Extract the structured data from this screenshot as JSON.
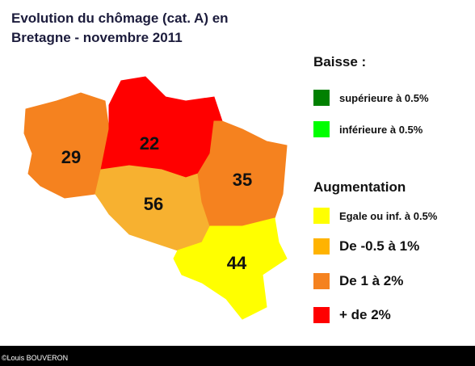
{
  "header": {
    "title_lines": [
      "Evolution du chômage (cat. A) en",
      "Bretagne - novembre 2011"
    ]
  },
  "map": {
    "regions": [
      {
        "label": "29",
        "color": "#f5821f"
      },
      {
        "label": "22",
        "color": "#ff0000"
      },
      {
        "label": "56",
        "color": "#f7b130"
      },
      {
        "label": "35",
        "color": "#f5821f"
      },
      {
        "label": "44",
        "color": "#ffff00"
      }
    ]
  },
  "legend": {
    "sections": [
      {
        "title": "Baisse :",
        "items": [
          {
            "label": "supérieure à 0.5%",
            "color": "#008000"
          },
          {
            "label": "inférieure à 0.5%",
            "color": "#00ff00"
          }
        ]
      },
      {
        "title": "Augmentation",
        "items": [
          {
            "label": "Egale ou inf. à 0.5%",
            "color": "#ffff00"
          },
          {
            "label": "De -0.5 à 1%",
            "color": "#ffb300"
          },
          {
            "label": "De 1 à 2%",
            "color": "#f5821f"
          },
          {
            "label": "+ de 2%",
            "color": "#ff0000"
          }
        ]
      }
    ]
  },
  "footer": {
    "credit": "©Louis BOUVERON"
  }
}
